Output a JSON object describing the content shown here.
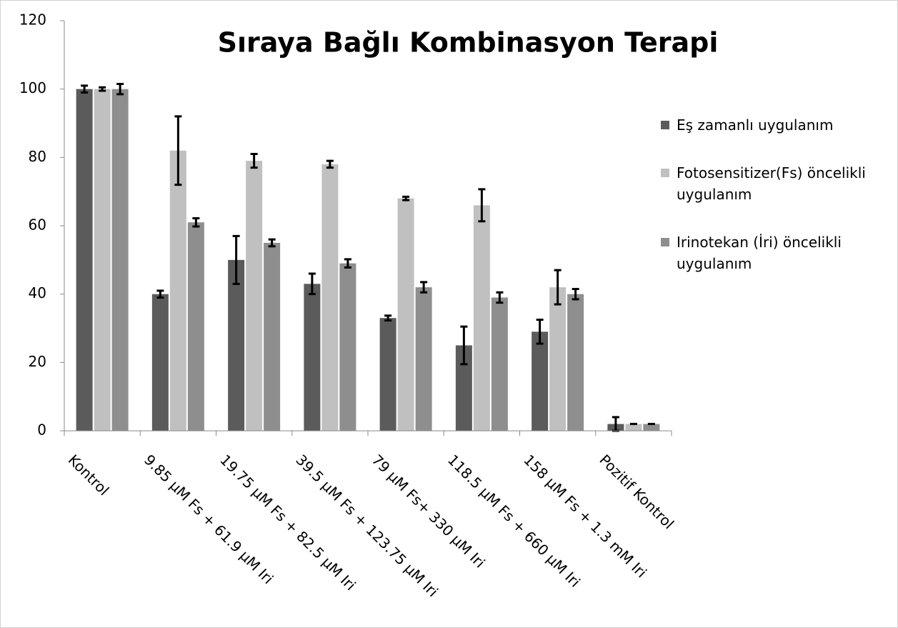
{
  "chart_data": {
    "type": "bar",
    "title": "Sıraya Bağlı Kombinasyon Terapi",
    "categories": [
      "Kontrol",
      "9.85 µM Fs + 61.9 µM Iri",
      "19.75 µM Fs + 82.5 µM Iri",
      "39.5 µM Fs + 123.75 µM Iri",
      "79 µM Fs+ 330 µM Iri",
      "118.5 µM Fs + 660 µM Iri",
      "158 µM Fs + 1.3 mM Iri",
      "Pozitif Kontrol"
    ],
    "series": [
      {
        "name": "Eş zamanlı uygulanım",
        "color": "#5b5b5b",
        "values": [
          100,
          40,
          50,
          43,
          33,
          25,
          29,
          2
        ],
        "errors": [
          1,
          1,
          7,
          3,
          0.7,
          5.5,
          3.5,
          2
        ]
      },
      {
        "name": "Fotosensitizer(Fs) öncelikli uygulanım",
        "color": "#c0c0c0",
        "values": [
          100,
          82,
          79,
          78,
          68,
          66,
          42,
          2
        ],
        "errors": [
          0.5,
          10,
          2,
          1,
          0.5,
          4.7,
          5,
          0
        ]
      },
      {
        "name": "Irinotekan (İri) öncelikli uygulanım",
        "color": "#8e8e8e",
        "values": [
          100,
          61,
          55,
          49,
          42,
          39,
          40,
          2
        ],
        "errors": [
          1.5,
          1.2,
          1,
          1.2,
          1.5,
          1.5,
          1.5,
          0
        ]
      }
    ],
    "ylim": [
      0,
      120
    ],
    "yticks": [
      0,
      20,
      40,
      60,
      80,
      100,
      120
    ],
    "grid": false,
    "legend": "right"
  }
}
